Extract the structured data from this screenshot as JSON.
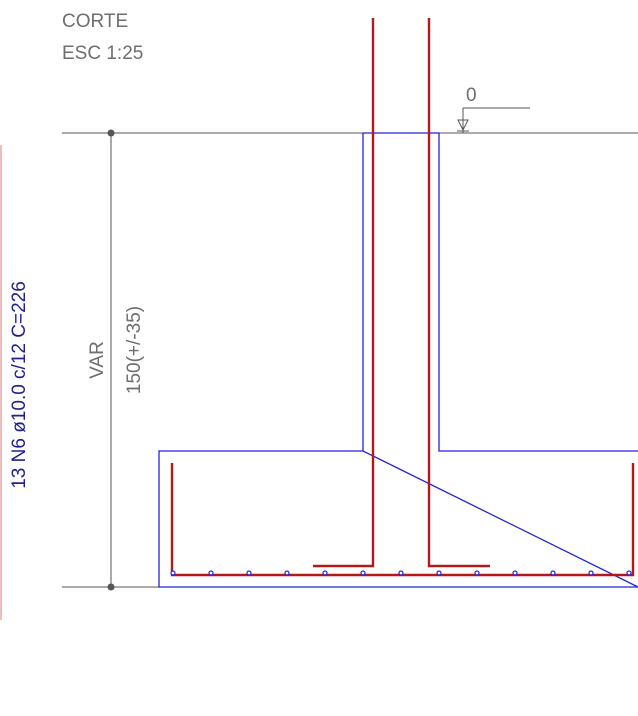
{
  "title": {
    "line1": "CORTE",
    "line2": "ESC 1:25"
  },
  "level_marker": {
    "value": "0"
  },
  "dimension": {
    "label_var": "VAR",
    "label_value": "150(+/-35)"
  },
  "rebar_callout": {
    "text": "13 N6 ø10.0 c/12 C=226"
  },
  "colors": {
    "concrete_outline": "#2222dd",
    "rebar": "#b51818",
    "rebar_dots": "#2222dd",
    "dimension_lines": "#555555",
    "text_grey": "#6e6e6e",
    "callout_text": "#1f1f8f",
    "callout_leader": "#e07a7a"
  }
}
